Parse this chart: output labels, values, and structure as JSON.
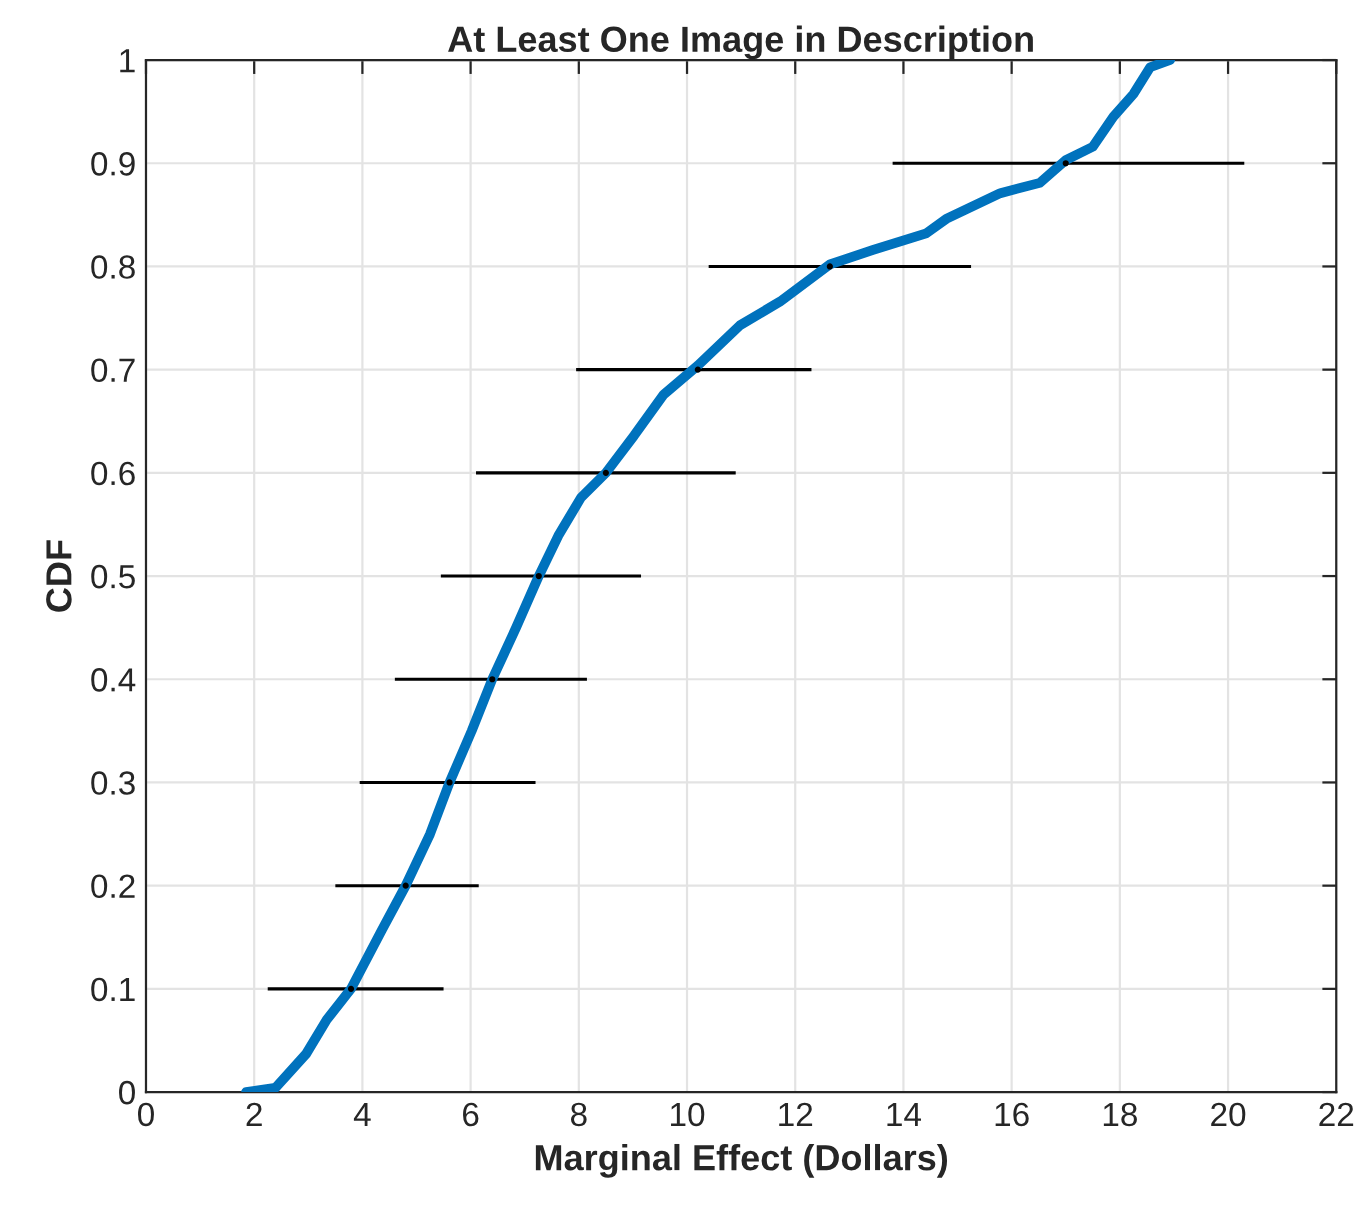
{
  "chart_data": {
    "type": "line",
    "title": "At Least One Image in Description",
    "xlabel": "Marginal Effect (Dollars)",
    "ylabel": "CDF",
    "series": [
      {
        "color": "#0072bd",
        "x": [
          1.85,
          2.39,
          2.96,
          3.34,
          3.79,
          4.36,
          4.8,
          5.25,
          5.61,
          6.02,
          6.4,
          6.84,
          7.26,
          7.62,
          8.04,
          8.5,
          9.02,
          9.57,
          10.2,
          10.98,
          11.72,
          12.64,
          13.44,
          14.42,
          14.79,
          15.79,
          16.52,
          17.0,
          17.5,
          17.88,
          18.25,
          18.56,
          18.93
        ],
        "values": [
          0,
          0.004,
          0.037,
          0.07,
          0.1,
          0.157,
          0.2,
          0.25,
          0.3,
          0.35,
          0.4,
          0.45,
          0.5,
          0.539,
          0.576,
          0.6,
          0.636,
          0.676,
          0.704,
          0.743,
          0.766,
          0.802,
          0.816,
          0.832,
          0.846,
          0.871,
          0.881,
          0.903,
          0.916,
          0.945,
          0.967,
          0.993,
          1.0
        ]
      },
      {
        "type": "scatter",
        "color": "#000000",
        "x": [
          3.79,
          4.8,
          5.61,
          6.4,
          7.26,
          8.5,
          10.2,
          12.64,
          17.0
        ],
        "values": [
          0.1,
          0.2,
          0.3,
          0.4,
          0.5,
          0.6,
          0.7,
          0.8,
          0.9
        ],
        "xerrors": [
          [
            2.25,
            5.5
          ],
          [
            3.5,
            6.15
          ],
          [
            3.95,
            7.2
          ],
          [
            4.6,
            8.15
          ],
          [
            5.45,
            9.15
          ],
          [
            6.1,
            10.9
          ],
          [
            7.95,
            12.3
          ],
          [
            10.4,
            15.25
          ],
          [
            13.8,
            20.3
          ]
        ]
      }
    ],
    "xlim": [
      0,
      22
    ],
    "xticks": [
      0,
      2,
      4,
      6,
      8,
      10,
      12,
      14,
      16,
      18,
      20,
      22
    ],
    "ylim": [
      0,
      1
    ],
    "yticks": [
      0,
      0.1,
      0.2,
      0.3,
      0.4,
      0.5,
      0.6,
      0.7,
      0.8,
      0.9,
      1
    ],
    "grid": true
  }
}
